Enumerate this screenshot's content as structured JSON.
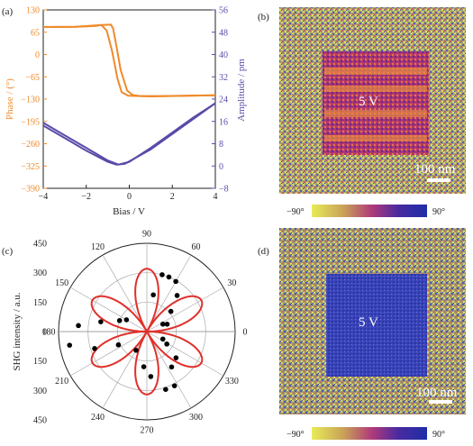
{
  "panels": {
    "a": {
      "letter": "(a)"
    },
    "b": {
      "letter": "(b)",
      "voltage": "5 V",
      "scalebar": "100 nm"
    },
    "c": {
      "letter": "(c)"
    },
    "d": {
      "letter": "(d)",
      "voltage": "5 V",
      "scalebar": "100 nm"
    }
  },
  "colorbar": {
    "min_label": "−90°",
    "max_label": "90°"
  },
  "colors": {
    "phase": "#f08a2a",
    "amplitude": "#5b4aa8",
    "fit": "#e0302a",
    "points": "#000000",
    "map_low": "#d8d860",
    "map_high": "#3a44b8"
  },
  "chart_data": [
    {
      "type": "line",
      "panel": "a",
      "xlabel": "Bias / V",
      "ylabel": "Phase / (°)",
      "y2label": "Amplitude / pm",
      "xlim": [
        -4,
        4
      ],
      "ylim": [
        -390,
        130
      ],
      "y2lim": [
        -8,
        56
      ],
      "xticks": [
        "−4",
        "−2",
        "0",
        "2",
        "4"
      ],
      "yticks": [
        "130",
        "65",
        "0",
        "−65",
        "−130",
        "−195",
        "−260",
        "−325",
        "−390"
      ],
      "y2ticks": [
        "56",
        "48",
        "40",
        "32",
        "24",
        "16",
        "8",
        "0",
        "−8"
      ],
      "series": [
        {
          "axis": "left",
          "values_forward": [
            [
              -4,
              80
            ],
            [
              -2.5,
              81
            ],
            [
              -1.6,
              83
            ],
            [
              -1.3,
              86
            ],
            [
              -1.05,
              70
            ],
            [
              -0.8,
              10
            ],
            [
              -0.55,
              -70
            ],
            [
              -0.35,
              -110
            ],
            [
              -0.05,
              -120
            ],
            [
              1,
              -122
            ],
            [
              4,
              -119
            ]
          ],
          "values_reverse": [
            [
              4,
              -119
            ],
            [
              1.5,
              -121
            ],
            [
              0.5,
              -121
            ],
            [
              0.15,
              -118
            ],
            [
              -0.1,
              -105
            ],
            [
              -0.4,
              -45
            ],
            [
              -0.6,
              25
            ],
            [
              -0.75,
              75
            ],
            [
              -0.85,
              87
            ],
            [
              -1.3,
              86
            ],
            [
              -2.5,
              81
            ],
            [
              -4,
              80
            ]
          ]
        },
        {
          "axis": "right",
          "values_forward": [
            [
              -4,
              15.5
            ],
            [
              -3,
              11
            ],
            [
              -2,
              6.5
            ],
            [
              -1,
              2
            ],
            [
              -0.5,
              0.5
            ],
            [
              0,
              1.5
            ],
            [
              1,
              6.5
            ],
            [
              2,
              12
            ],
            [
              3,
              17.5
            ],
            [
              4,
              22.5
            ]
          ],
          "values_reverse": [
            [
              -4,
              14.5
            ],
            [
              -3,
              10
            ],
            [
              -2,
              5.5
            ],
            [
              -1,
              1.5
            ],
            [
              -0.6,
              0.5
            ],
            [
              -0.2,
              0.8
            ],
            [
              1,
              6
            ],
            [
              2,
              11.5
            ],
            [
              3,
              17
            ],
            [
              4,
              22.5
            ]
          ]
        }
      ]
    },
    {
      "type": "scatter",
      "panel": "c",
      "polar": true,
      "ylabel": "SHG intensity / a.u.",
      "rlim": [
        0,
        450
      ],
      "angle_ticks": [
        "0",
        "30",
        "60",
        "90",
        "120",
        "150",
        "180",
        "210",
        "240",
        "270",
        "300",
        "330"
      ],
      "r_ticks": [
        "450",
        "300",
        "150",
        "0",
        "150",
        "300",
        "450"
      ],
      "points": [
        [
          80,
          190
        ],
        [
          75,
          300
        ],
        [
          68,
          300
        ],
        [
          60,
          295
        ],
        [
          50,
          240
        ],
        [
          40,
          160
        ],
        [
          25,
          90
        ],
        [
          20,
          110
        ],
        [
          335,
          90
        ],
        [
          328,
          120
        ],
        [
          318,
          200
        ],
        [
          305,
          220
        ],
        [
          297,
          310
        ],
        [
          288,
          310
        ],
        [
          275,
          230
        ],
        [
          265,
          180
        ],
        [
          240,
          110
        ],
        [
          205,
          160
        ],
        [
          198,
          280
        ],
        [
          190,
          400
        ],
        [
          175,
          350
        ],
        [
          168,
          240
        ],
        [
          158,
          150
        ],
        [
          150,
          120
        ]
      ],
      "fit": {
        "form": "|cos(3θ)|",
        "amplitude": 320
      }
    }
  ]
}
